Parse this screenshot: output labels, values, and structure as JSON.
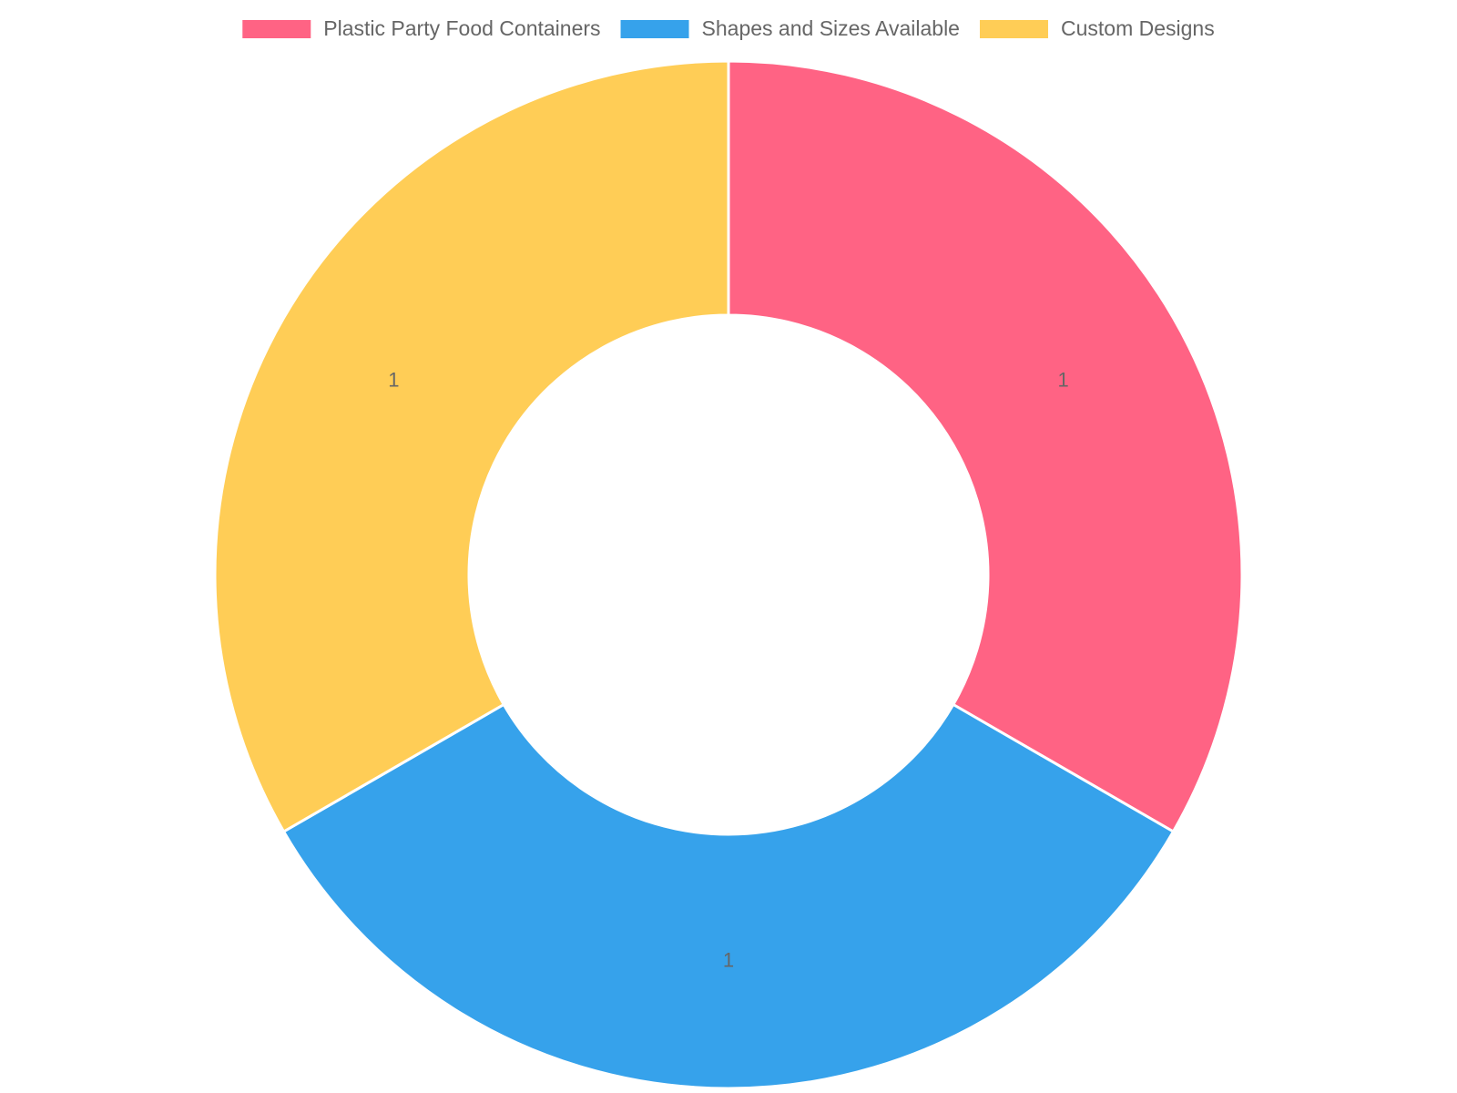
{
  "chart_data": {
    "type": "doughnut",
    "categories": [
      "Plastic Party Food Containers",
      "Shapes and Sizes Available",
      "Custom Designs"
    ],
    "values": [
      1,
      1,
      1
    ],
    "colors": [
      "#ff6384",
      "#36a2eb",
      "#ffcd56"
    ],
    "legend": "top"
  }
}
